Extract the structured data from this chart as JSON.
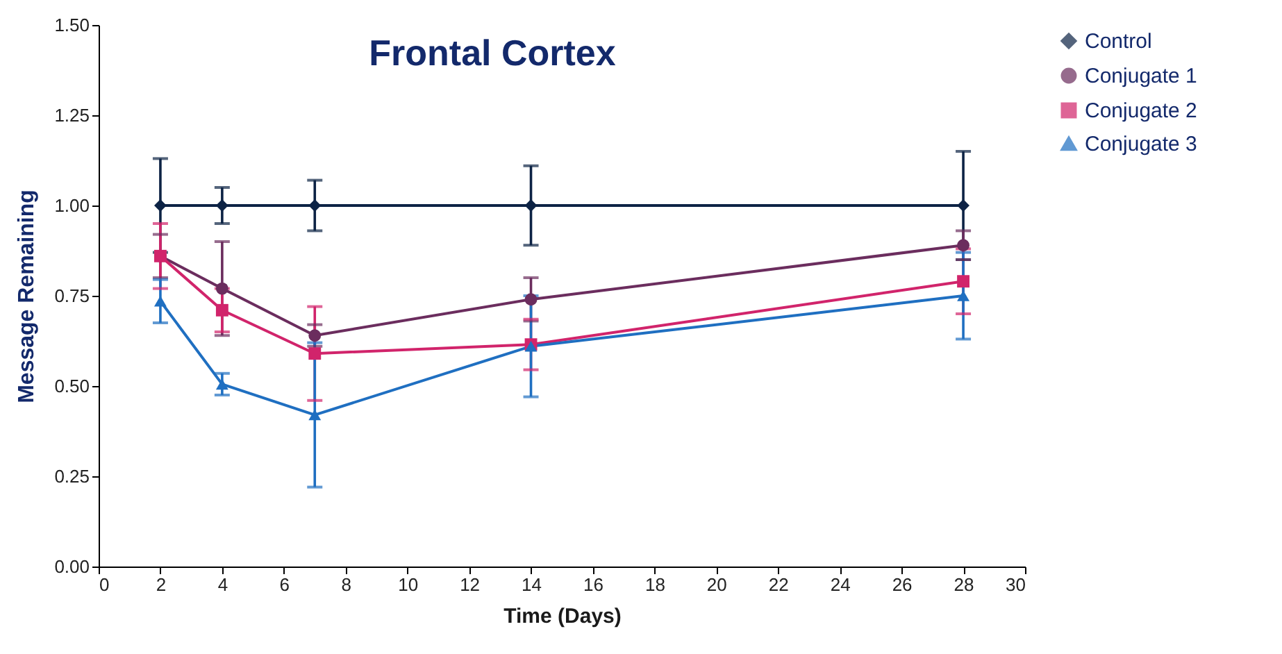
{
  "chart_data": {
    "type": "line",
    "title": "Frontal Cortex",
    "xlabel": "Time (Days)",
    "ylabel": "Message Remaining",
    "x": [
      2,
      4,
      7,
      14,
      28
    ],
    "series": [
      {
        "name": "Control",
        "color": "#0d2345",
        "marker": "diamond",
        "values": [
          1.0,
          1.0,
          1.0,
          1.0,
          1.0
        ],
        "errors": [
          0.13,
          0.05,
          0.07,
          0.11,
          0.15
        ]
      },
      {
        "name": "Conjugate 1",
        "color": "#6b2d5e",
        "marker": "circle",
        "values": [
          0.86,
          0.77,
          0.64,
          0.74,
          0.89
        ],
        "errors": [
          0.06,
          0.13,
          0.03,
          0.06,
          0.04
        ]
      },
      {
        "name": "Conjugate 2",
        "color": "#d1246b",
        "marker": "square",
        "values": [
          0.86,
          0.71,
          0.59,
          0.615,
          0.79
        ],
        "errors": [
          0.09,
          0.06,
          0.13,
          0.07,
          0.09
        ]
      },
      {
        "name": "Conjugate 3",
        "color": "#1f6fc1",
        "marker": "triangle",
        "values": [
          0.735,
          0.505,
          0.42,
          0.61,
          0.75
        ],
        "errors": [
          0.06,
          0.03,
          0.2,
          0.14,
          0.12
        ]
      }
    ],
    "xlim": [
      0,
      30
    ],
    "xticks": [
      0,
      2,
      4,
      6,
      8,
      10,
      12,
      14,
      16,
      18,
      20,
      22,
      24,
      26,
      28,
      30
    ],
    "ylim": [
      0,
      1.5
    ],
    "yticks": [
      {
        "value": 0,
        "label": "0.00"
      },
      {
        "value": 0.25,
        "label": "0.25"
      },
      {
        "value": 0.5,
        "label": "0.50"
      },
      {
        "value": 0.75,
        "label": "0.75"
      },
      {
        "value": 1,
        "label": "1.00"
      },
      {
        "value": 1.25,
        "label": "1.25"
      },
      {
        "value": 1.5,
        "label": "1.50"
      }
    ],
    "grid": false,
    "legend": "right",
    "line_style": "solid"
  }
}
